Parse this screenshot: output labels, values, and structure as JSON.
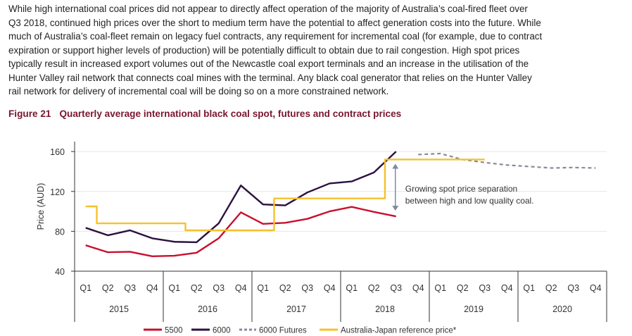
{
  "paragraph_lines": [
    "While high international coal prices did not appear to directly affect operation of the majority of Australia’s coal-fired fleet over",
    "Q3 2018, continued high prices over the short to medium term have the potential to affect generation costs into the future. While",
    "much of Australia’s coal-fleet remain on legacy fuel contracts, any requirement for incremental coal (for example, due to contract",
    "expiration or support higher levels of production) will be potentially difficult to obtain due to rail congestion. High spot prices",
    "typically result in increased export volumes out of the Newcastle coal export terminals and an increase in the utilisation of the",
    "Hunter Valley rail network that connects coal mines with the terminal. Any black coal generator that relies on the Hunter Valley",
    "rail network for delivery of incremental coal will be doing so on a more constrained network."
  ],
  "figure": {
    "number": "Figure 21",
    "title": "Quarterly average international black coal spot, futures and contract prices"
  },
  "chart_data": {
    "type": "line",
    "ylabel": "Price (AUD)",
    "ylim": [
      40,
      170
    ],
    "yticks": [
      40,
      80,
      120,
      160
    ],
    "grid": "horizontal",
    "legend_position": "bottom",
    "categories": [
      "Q1",
      "Q2",
      "Q3",
      "Q4",
      "Q1",
      "Q2",
      "Q3",
      "Q4",
      "Q1",
      "Q2",
      "Q3",
      "Q4",
      "Q1",
      "Q2",
      "Q3",
      "Q4",
      "Q1",
      "Q2",
      "Q3",
      "Q4",
      "Q1",
      "Q2",
      "Q3",
      "Q4"
    ],
    "years": [
      "2015",
      "2016",
      "2017",
      "2018",
      "2019",
      "2020"
    ],
    "series": [
      {
        "name": "5500",
        "color": "#c8102e",
        "style": "solid",
        "values": [
          66,
          59,
          59.5,
          55,
          55.5,
          58.5,
          73,
          99,
          87.5,
          88.5,
          92.5,
          100,
          104.5,
          99.5,
          95,
          null,
          null,
          null,
          null,
          null,
          null,
          null,
          null,
          null
        ]
      },
      {
        "name": "6000",
        "color": "#2c1040",
        "style": "solid",
        "values": [
          83.5,
          76,
          81,
          73,
          69.5,
          69,
          88,
          126,
          107,
          106,
          119,
          128,
          130,
          139,
          160,
          null,
          null,
          null,
          null,
          null,
          null,
          null,
          null,
          null
        ]
      },
      {
        "name": "6000 Futures",
        "color": "#8a8a9a",
        "style": "dashed",
        "values": [
          null,
          null,
          null,
          null,
          null,
          null,
          null,
          null,
          null,
          null,
          null,
          null,
          null,
          null,
          null,
          157,
          158,
          152,
          149,
          146.5,
          145,
          143.5,
          144,
          143.5
        ]
      },
      {
        "name": "Australia-Japan reference price*",
        "color": "#f6c12c",
        "style": "step",
        "values": [
          105,
          88,
          88,
          88,
          88,
          81,
          81,
          81,
          81,
          113,
          113,
          113,
          113,
          113,
          152,
          152,
          152,
          152,
          152,
          null,
          null,
          null,
          null,
          null
        ]
      }
    ],
    "annotation": {
      "lines": [
        "Growing spot price separation",
        "between high and low quality coal."
      ],
      "arrow_from": 152,
      "arrow_to": 95,
      "arrow_category_index": 14
    }
  }
}
